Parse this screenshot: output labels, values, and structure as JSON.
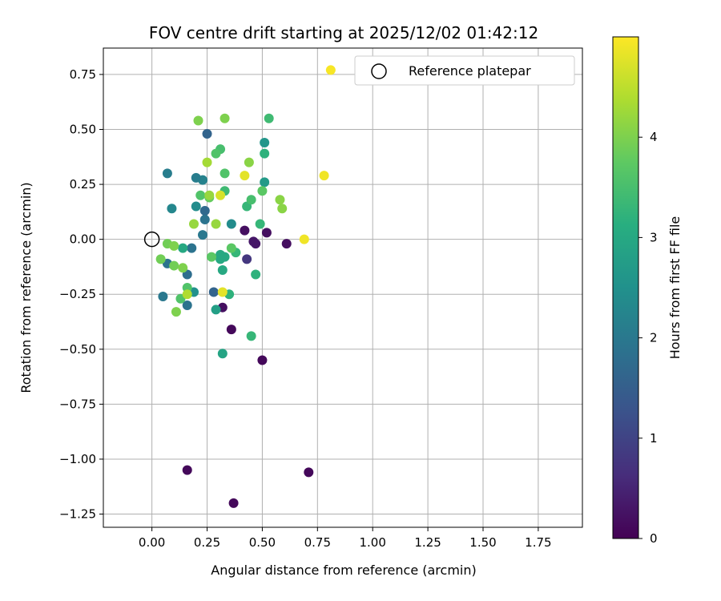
{
  "chart_data": {
    "type": "scatter",
    "title": "FOV centre drift starting at 2025/12/02 01:42:12",
    "xlabel": "Angular distance from reference (arcmin)",
    "ylabel": "Rotation from reference (arcmin)",
    "xlim": [
      -0.22,
      1.95
    ],
    "ylim": [
      -1.31,
      0.87
    ],
    "xticks": [
      0.0,
      0.25,
      0.5,
      0.75,
      1.0,
      1.25,
      1.5,
      1.75
    ],
    "xtick_labels": [
      "0.00",
      "0.25",
      "0.50",
      "0.75",
      "1.00",
      "1.25",
      "1.50",
      "1.75"
    ],
    "yticks": [
      0.75,
      0.5,
      0.25,
      0.0,
      -0.25,
      -0.5,
      -0.75,
      -1.0,
      -1.25
    ],
    "ytick_labels": [
      "0.75",
      "0.50",
      "0.25",
      "0.00",
      "−0.25",
      "−0.50",
      "−0.75",
      "−1.00",
      "−1.25"
    ],
    "grid": true,
    "legend": {
      "position": "top-right",
      "label": "Reference platepar"
    },
    "reference_point": {
      "x": 0.0,
      "y": 0.0
    },
    "colorbar": {
      "label": "Hours from first FF file",
      "colormap": "viridis",
      "range": [
        0,
        5
      ],
      "ticks": [
        0,
        1,
        2,
        3,
        4
      ],
      "tick_labels": [
        "0",
        "1",
        "2",
        "3",
        "4"
      ]
    },
    "points": [
      {
        "x": 0.16,
        "y": -1.05,
        "c": 0.1
      },
      {
        "x": 0.37,
        "y": -1.2,
        "c": 0.1
      },
      {
        "x": 0.71,
        "y": -1.06,
        "c": 0.1
      },
      {
        "x": 0.5,
        "y": -0.55,
        "c": 0.1
      },
      {
        "x": 0.36,
        "y": -0.41,
        "c": 0.1
      },
      {
        "x": 0.32,
        "y": -0.31,
        "c": 0.2
      },
      {
        "x": 0.42,
        "y": 0.04,
        "c": 0.2
      },
      {
        "x": 0.46,
        "y": -0.01,
        "c": 0.3
      },
      {
        "x": 0.47,
        "y": -0.02,
        "c": 0.3
      },
      {
        "x": 0.52,
        "y": 0.03,
        "c": 0.2
      },
      {
        "x": 0.61,
        "y": -0.02,
        "c": 0.2
      },
      {
        "x": 0.43,
        "y": -0.09,
        "c": 0.8
      },
      {
        "x": 0.28,
        "y": -0.24,
        "c": 1.6
      },
      {
        "x": 0.25,
        "y": 0.48,
        "c": 1.6
      },
      {
        "x": 0.24,
        "y": 0.13,
        "c": 1.7
      },
      {
        "x": 0.24,
        "y": 0.09,
        "c": 1.9
      },
      {
        "x": 0.23,
        "y": 0.02,
        "c": 2.0
      },
      {
        "x": 0.23,
        "y": 0.27,
        "c": 2.2
      },
      {
        "x": 0.2,
        "y": 0.28,
        "c": 2.1
      },
      {
        "x": 0.18,
        "y": -0.04,
        "c": 1.9
      },
      {
        "x": 0.16,
        "y": -0.16,
        "c": 1.8
      },
      {
        "x": 0.16,
        "y": -0.3,
        "c": 1.9
      },
      {
        "x": 0.07,
        "y": -0.11,
        "c": 1.9
      },
      {
        "x": 0.05,
        "y": -0.26,
        "c": 2.0
      },
      {
        "x": 0.07,
        "y": 0.3,
        "c": 2.1
      },
      {
        "x": 0.09,
        "y": 0.14,
        "c": 2.3
      },
      {
        "x": 0.2,
        "y": 0.15,
        "c": 2.4
      },
      {
        "x": 0.19,
        "y": -0.24,
        "c": 2.5
      },
      {
        "x": 0.36,
        "y": 0.07,
        "c": 2.4
      },
      {
        "x": 0.51,
        "y": 0.44,
        "c": 2.6
      },
      {
        "x": 0.51,
        "y": 0.26,
        "c": 2.7
      },
      {
        "x": 0.29,
        "y": -0.32,
        "c": 2.8
      },
      {
        "x": 0.32,
        "y": -0.52,
        "c": 2.9
      },
      {
        "x": 0.31,
        "y": -0.07,
        "c": 3.0
      },
      {
        "x": 0.31,
        "y": -0.09,
        "c": 3.0
      },
      {
        "x": 0.32,
        "y": -0.14,
        "c": 3.0
      },
      {
        "x": 0.33,
        "y": -0.08,
        "c": 3.0
      },
      {
        "x": 0.14,
        "y": -0.04,
        "c": 3.0
      },
      {
        "x": 0.35,
        "y": -0.25,
        "c": 3.2
      },
      {
        "x": 0.45,
        "y": -0.44,
        "c": 3.3
      },
      {
        "x": 0.47,
        "y": -0.16,
        "c": 3.2
      },
      {
        "x": 0.38,
        "y": -0.06,
        "c": 3.3
      },
      {
        "x": 0.43,
        "y": 0.15,
        "c": 3.3
      },
      {
        "x": 0.49,
        "y": 0.07,
        "c": 3.3
      },
      {
        "x": 0.51,
        "y": 0.39,
        "c": 3.2
      },
      {
        "x": 0.33,
        "y": 0.22,
        "c": 3.4
      },
      {
        "x": 0.45,
        "y": 0.18,
        "c": 3.5
      },
      {
        "x": 0.53,
        "y": 0.55,
        "c": 3.4
      },
      {
        "x": 0.31,
        "y": 0.41,
        "c": 3.5
      },
      {
        "x": 0.29,
        "y": 0.39,
        "c": 3.6
      },
      {
        "x": 0.33,
        "y": 0.3,
        "c": 3.6
      },
      {
        "x": 0.22,
        "y": 0.2,
        "c": 3.6
      },
      {
        "x": 0.16,
        "y": -0.22,
        "c": 3.6
      },
      {
        "x": 0.13,
        "y": -0.27,
        "c": 3.6
      },
      {
        "x": 0.27,
        "y": -0.08,
        "c": 3.7
      },
      {
        "x": 0.36,
        "y": -0.04,
        "c": 3.7
      },
      {
        "x": 0.5,
        "y": 0.22,
        "c": 3.7
      },
      {
        "x": 0.26,
        "y": 0.19,
        "c": 3.8
      },
      {
        "x": 0.07,
        "y": -0.02,
        "c": 3.9
      },
      {
        "x": 0.04,
        "y": -0.09,
        "c": 3.9
      },
      {
        "x": 0.1,
        "y": -0.12,
        "c": 3.9
      },
      {
        "x": 0.11,
        "y": -0.33,
        "c": 4.0
      },
      {
        "x": 0.14,
        "y": -0.13,
        "c": 4.0
      },
      {
        "x": 0.1,
        "y": -0.03,
        "c": 4.0
      },
      {
        "x": 0.21,
        "y": 0.54,
        "c": 4.0
      },
      {
        "x": 0.33,
        "y": 0.55,
        "c": 4.0
      },
      {
        "x": 0.44,
        "y": 0.35,
        "c": 4.1
      },
      {
        "x": 0.58,
        "y": 0.18,
        "c": 4.1
      },
      {
        "x": 0.59,
        "y": 0.14,
        "c": 4.1
      },
      {
        "x": 0.19,
        "y": 0.07,
        "c": 4.2
      },
      {
        "x": 0.29,
        "y": 0.07,
        "c": 4.2
      },
      {
        "x": 0.26,
        "y": 0.2,
        "c": 4.2
      },
      {
        "x": 0.25,
        "y": 0.35,
        "c": 4.3
      },
      {
        "x": 0.16,
        "y": -0.25,
        "c": 4.4
      },
      {
        "x": 0.31,
        "y": 0.2,
        "c": 4.7
      },
      {
        "x": 0.42,
        "y": 0.29,
        "c": 4.8
      },
      {
        "x": 0.32,
        "y": -0.24,
        "c": 4.8
      },
      {
        "x": 0.69,
        "y": 0.0,
        "c": 4.9
      },
      {
        "x": 0.78,
        "y": 0.29,
        "c": 4.9
      },
      {
        "x": 0.81,
        "y": 0.77,
        "c": 4.95
      }
    ]
  }
}
